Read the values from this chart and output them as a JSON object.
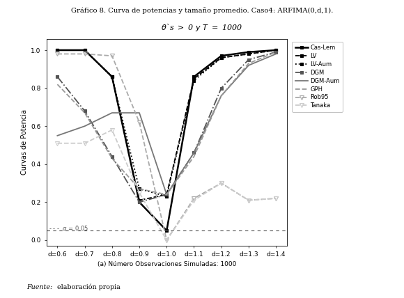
{
  "title_line1": "Gráfico 8. Curva de potencias y tamaño promedio. Caso4: ARFIMA(0,d,1).",
  "title_line2": "θ`s > 0 y T = 1000",
  "xlabel": "(a) Número Observaciones Simuladas: 1000",
  "ylabel": "Curvas de Potencia",
  "x_labels": [
    "d=0.6",
    "d=0.7",
    "d=0.8",
    "d=0.9",
    "d=1.0",
    "d=1.1",
    "d=1.2",
    "d=1.3",
    "d=1.4"
  ],
  "x_vals": [
    0.6,
    0.7,
    0.8,
    0.9,
    1.0,
    1.1,
    1.2,
    1.3,
    1.4
  ],
  "alpha_line": 0.05,
  "series": [
    {
      "name": "Cas-Lem",
      "y": [
        1.0,
        1.0,
        0.86,
        0.2,
        0.05,
        0.86,
        0.97,
        0.99,
        1.0
      ],
      "color": "#000000",
      "linestyle": "-",
      "linewidth": 1.8,
      "marker": "s",
      "markersize": 3.5,
      "markerfilled": true
    },
    {
      "name": "LV",
      "y": [
        1.0,
        1.0,
        0.86,
        0.21,
        0.24,
        0.85,
        0.96,
        0.98,
        1.0
      ],
      "color": "#000000",
      "linestyle": "--",
      "linewidth": 1.3,
      "marker": "s",
      "markersize": 3.5,
      "markerfilled": true
    },
    {
      "name": "LV-Aum",
      "y": [
        1.0,
        1.0,
        0.86,
        0.27,
        0.23,
        0.84,
        0.96,
        0.98,
        1.0
      ],
      "color": "#000000",
      "linestyle": ":",
      "linewidth": 1.3,
      "marker": "s",
      "markersize": 3.5,
      "markerfilled": true
    },
    {
      "name": "DGM",
      "y": [
        0.86,
        0.68,
        0.44,
        0.2,
        0.24,
        0.46,
        0.8,
        0.95,
        0.99
      ],
      "color": "#555555",
      "linestyle": "-.",
      "linewidth": 1.3,
      "marker": "s",
      "markersize": 3.5,
      "markerfilled": true
    },
    {
      "name": "DGM-Aum",
      "y": [
        0.55,
        0.6,
        0.67,
        0.67,
        0.24,
        0.46,
        0.76,
        0.92,
        0.98
      ],
      "color": "#777777",
      "linestyle": "-",
      "linewidth": 1.3,
      "marker": null,
      "markersize": 0,
      "markerfilled": false
    },
    {
      "name": "GPH",
      "y": [
        0.82,
        0.67,
        0.43,
        0.27,
        0.24,
        0.44,
        0.76,
        0.93,
        0.99
      ],
      "color": "#999999",
      "linestyle": "--",
      "linewidth": 1.3,
      "marker": null,
      "markersize": 0,
      "markerfilled": false
    },
    {
      "name": "Rob95",
      "y": [
        0.98,
        0.98,
        0.97,
        0.62,
        0.0,
        0.22,
        0.3,
        0.21,
        0.22
      ],
      "color": "#aaaaaa",
      "linestyle": "--",
      "linewidth": 1.3,
      "marker": "v",
      "markersize": 4.5,
      "markerfilled": false
    },
    {
      "name": "Tanaka",
      "y": [
        0.51,
        0.51,
        0.58,
        0.25,
        0.0,
        0.21,
        0.3,
        0.21,
        0.22
      ],
      "color": "#cccccc",
      "linestyle": "--",
      "linewidth": 1.3,
      "marker": "v",
      "markersize": 4.5,
      "markerfilled": false
    }
  ],
  "footer_italic": "Fuente:",
  "footer_normal": " elaboración propia",
  "ylim": [
    -0.03,
    1.06
  ],
  "yticks": [
    0.0,
    0.2,
    0.4,
    0.6,
    0.8,
    1.0
  ],
  "background_color": "#ffffff"
}
